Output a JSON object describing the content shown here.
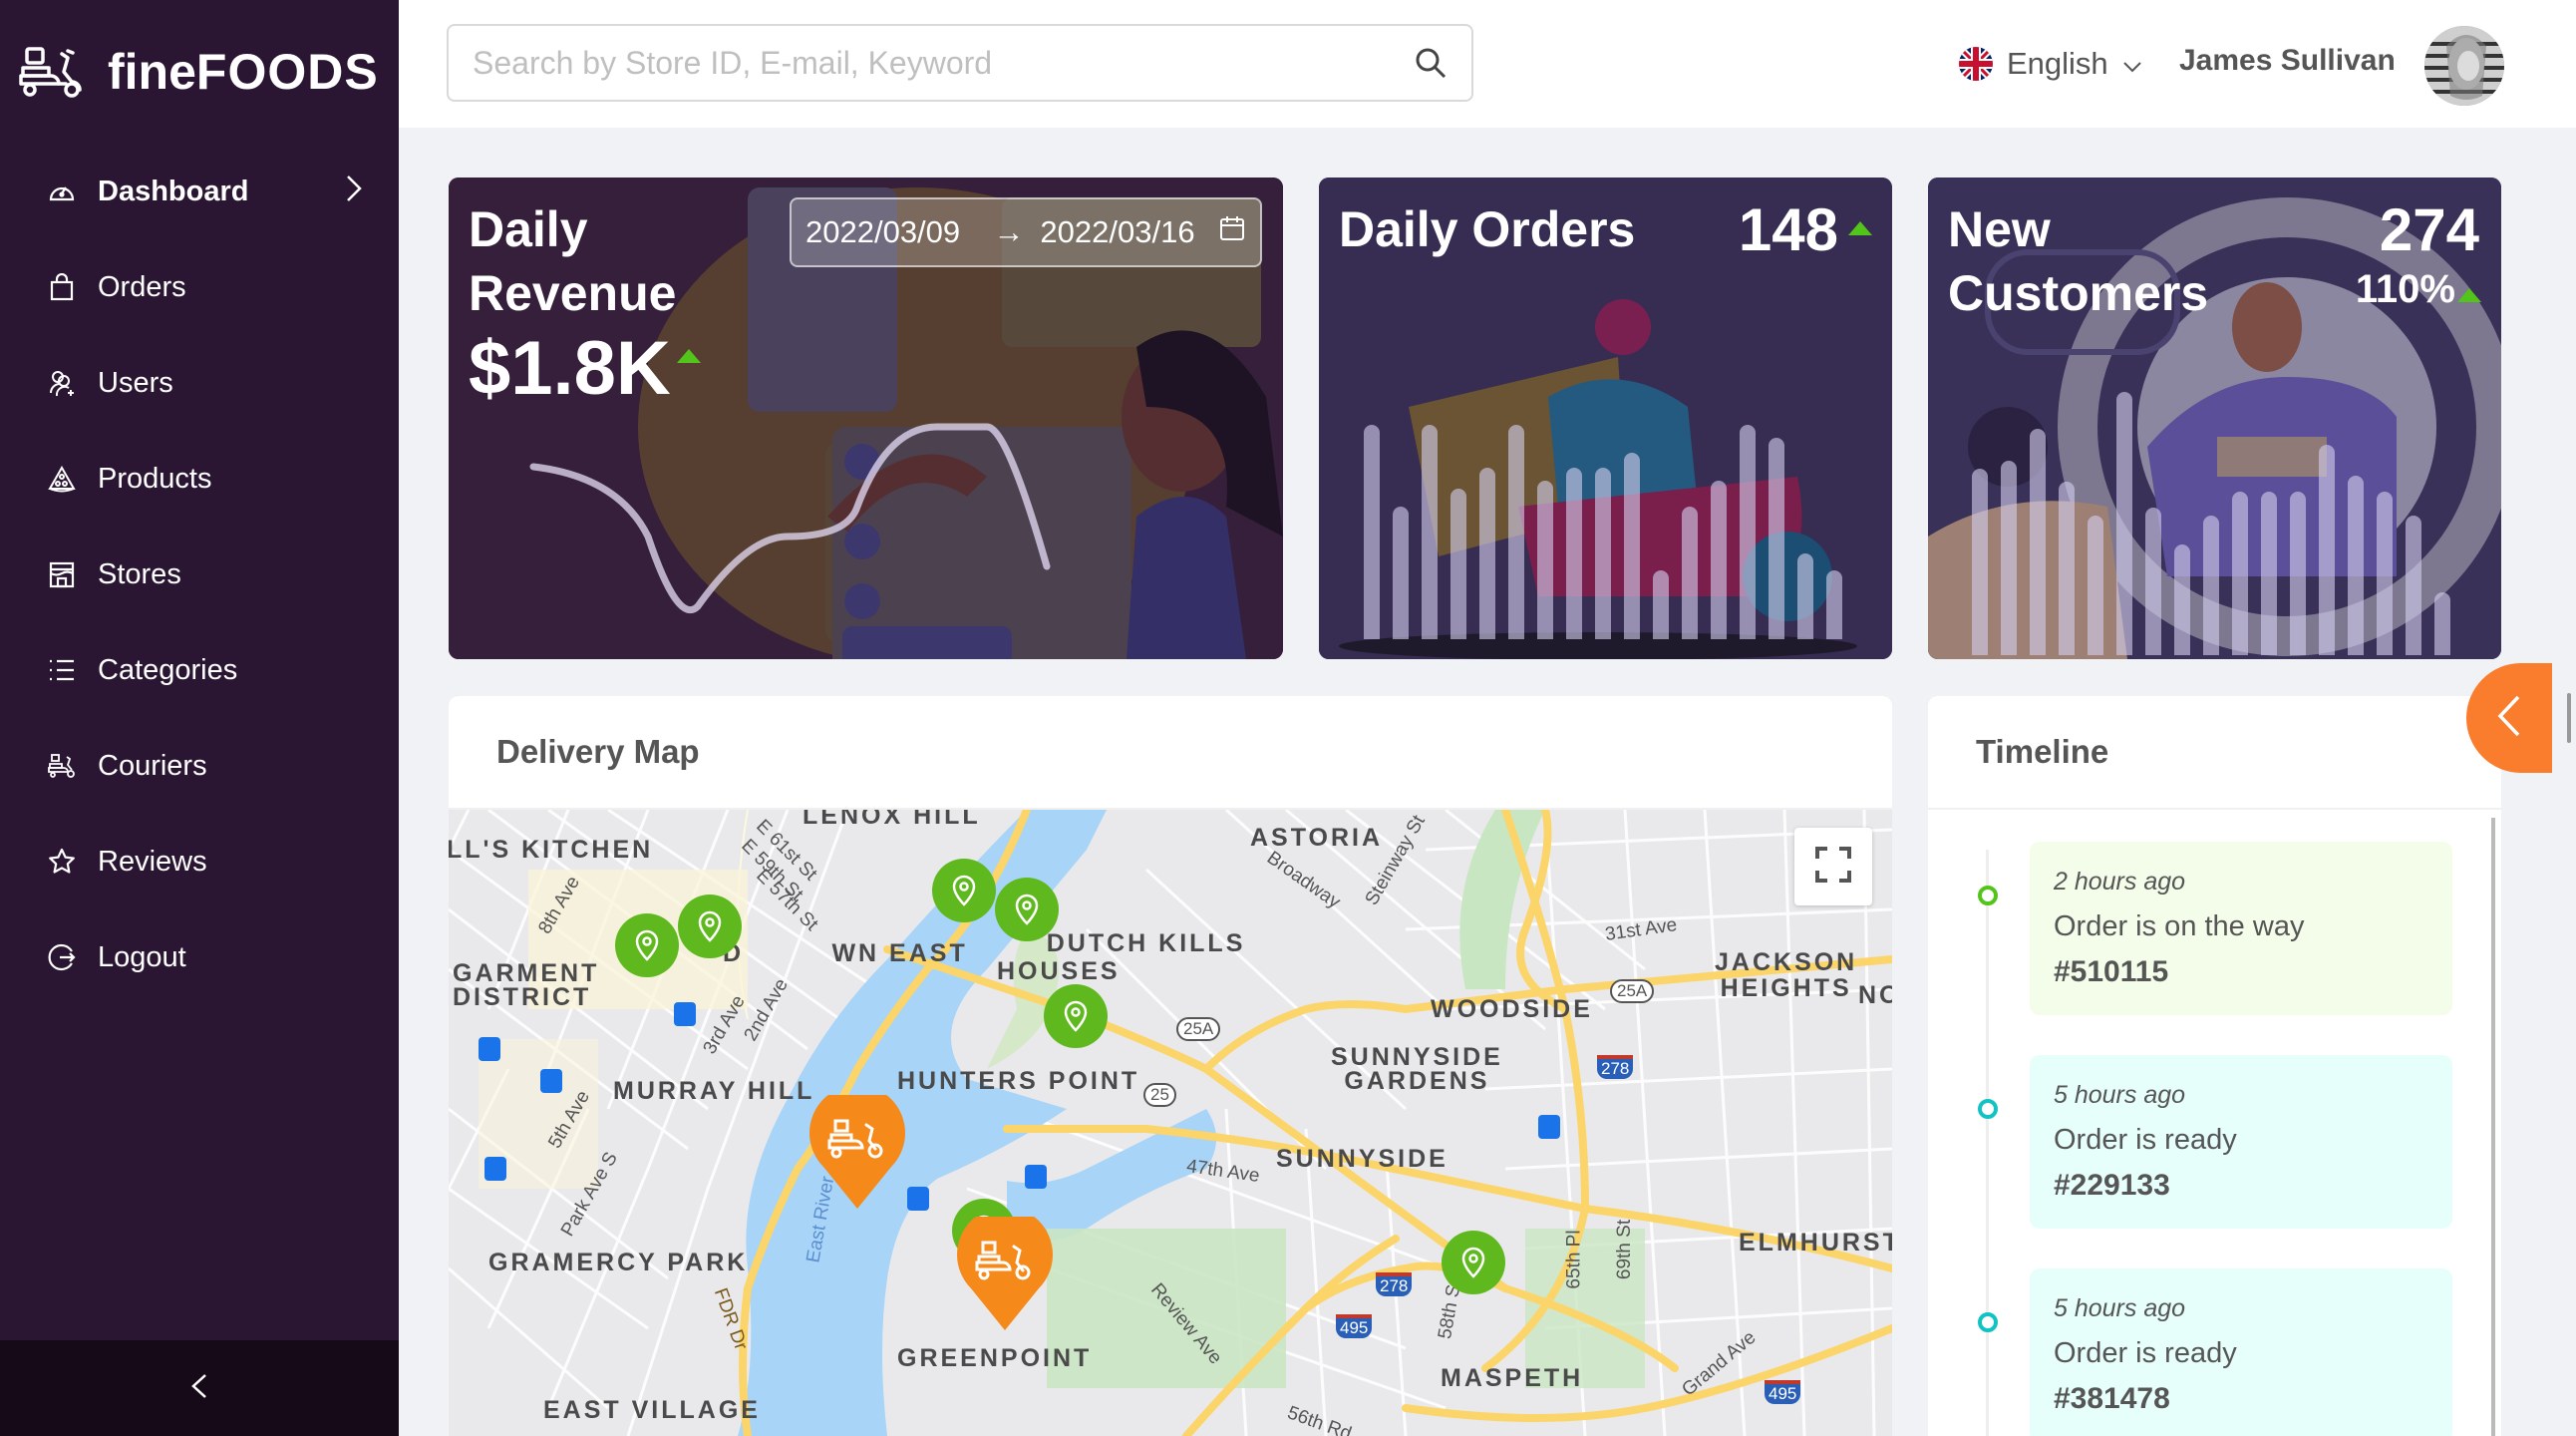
{
  "app": {
    "name_part1": "fine",
    "name_part2": "FOODS"
  },
  "sidebar": {
    "items": [
      {
        "label": "Dashboard",
        "icon": "dashboard-gauge-icon",
        "active": true
      },
      {
        "label": "Orders",
        "icon": "shopping-bag-icon"
      },
      {
        "label": "Users",
        "icon": "users-add-icon"
      },
      {
        "label": "Products",
        "icon": "pizza-slice-icon"
      },
      {
        "label": "Stores",
        "icon": "storefront-icon"
      },
      {
        "label": "Categories",
        "icon": "list-icon"
      },
      {
        "label": "Couriers",
        "icon": "scooter-icon"
      },
      {
        "label": "Reviews",
        "icon": "star-icon"
      },
      {
        "label": "Logout",
        "icon": "logout-icon"
      }
    ],
    "collapse_icon": "chevron-left-icon"
  },
  "header": {
    "search_placeholder": "Search by Store ID, E-mail, Keyword",
    "search_value": "",
    "language": "English",
    "user_name": "James Sullivan"
  },
  "stats": {
    "revenue": {
      "title_line1": "Daily",
      "title_line2": "Revenue",
      "value": "$1.8K",
      "trend": "up",
      "date_start": "2022/03/09",
      "date_arrow": "→",
      "date_end": "2022/03/16"
    },
    "orders": {
      "title": "Daily Orders",
      "value": "148",
      "trend": "up"
    },
    "customers": {
      "title_line1": "New",
      "title_line2": "Customers",
      "value": "274",
      "percent": "110%",
      "trend": "up"
    }
  },
  "chart_data": [
    {
      "type": "line",
      "title": "Daily Revenue",
      "x": [
        1,
        2,
        3,
        4,
        5,
        6,
        7,
        8
      ],
      "values": [
        68,
        55,
        10,
        32,
        40,
        82,
        82,
        25
      ],
      "note": "sparkline, unlabeled axes (approximate relative values)"
    },
    {
      "type": "bar",
      "title": "Daily Orders",
      "values": [
        100,
        62,
        100,
        70,
        80,
        100,
        74,
        80,
        80,
        87,
        32,
        62,
        74,
        100,
        94,
        40,
        32
      ],
      "note": "sparkline bars, relative heights"
    },
    {
      "type": "bar",
      "title": "New Customers",
      "values": [
        71,
        74,
        86,
        66,
        53,
        100,
        56,
        42,
        53,
        62,
        62,
        62,
        80,
        68,
        62,
        53,
        24
      ],
      "note": "sparkline bars, relative heights"
    }
  ],
  "map": {
    "title": "Delivery Map",
    "labels": [
      "LENOX HILL",
      "LL'S KITCHEN",
      "GARMENT DISTRICT",
      "MIDTOWN EAST",
      "MURRAY HILL",
      "GRAMERCY PARK",
      "EAST VILLAGE",
      "ASTORIA",
      "DUTCH KILLS HOUSES",
      "HUNTERS POINT",
      "WOODSIDE",
      "SUNNYSIDE GARDENS",
      "SUNNYSIDE",
      "JACKSON HEIGHTS",
      "ELMHURST",
      "GREENPOINT",
      "MASPETH"
    ],
    "streets": [
      "E 61st St",
      "E 59th St",
      "E 57th St",
      "8th Ave",
      "3rd Ave",
      "2nd Ave",
      "5th Ave",
      "Park Ave S",
      "East River",
      "FDR Dr",
      "Broadway",
      "Steinway St",
      "31st Ave",
      "47th Ave",
      "Review Ave",
      "58th St",
      "65th Pl",
      "69th St",
      "Grand Ave",
      "56th Rd"
    ],
    "shields": [
      "25A",
      "25A",
      "25",
      "278",
      "278",
      "495",
      "495"
    ],
    "colors": {
      "store_pin": "#5fb91e",
      "courier_pin": "#f5891a",
      "water": "#a8d4f7",
      "road": "#fcd872"
    }
  },
  "timeline": {
    "title": "Timeline",
    "items": [
      {
        "time": "2 hours ago",
        "message": "Order is on the way",
        "number": "#510115",
        "dot": "#52c41a",
        "bg": "#f3fdea"
      },
      {
        "time": "5 hours ago",
        "message": "Order is ready",
        "number": "#229133",
        "dot": "#13c2c2",
        "bg": "#e6fffb"
      },
      {
        "time": "5 hours ago",
        "message": "Order is ready",
        "number": "#381478",
        "dot": "#13c2c2",
        "bg": "#e6fffb"
      }
    ]
  },
  "colors": {
    "sidebar_bg": "#2a1632",
    "accent_orange": "#fa7d2e",
    "trend_up": "#52c41a"
  }
}
